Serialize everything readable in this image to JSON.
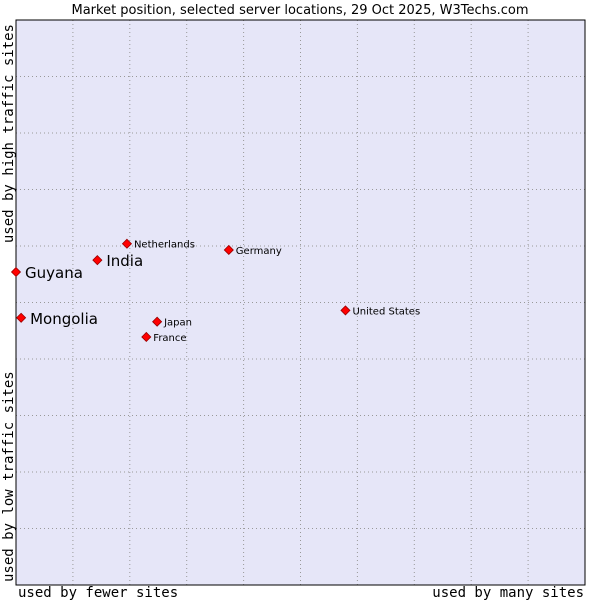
{
  "chart_data": {
    "type": "scatter",
    "title": "Market position, selected server locations, 29 Oct 2025, W3Techs.com",
    "xlabel_low": "used by fewer sites",
    "xlabel_high": "used by many sites",
    "ylabel_low": "used by low traffic sites",
    "ylabel_high": "used by high traffic sites",
    "xlim": [
      0,
      100
    ],
    "ylim": [
      0,
      100
    ],
    "grid": true,
    "points": [
      {
        "label": "Netherlands",
        "x": 19.5,
        "y": 60.4,
        "emphasis": false
      },
      {
        "label": "India",
        "x": 14.3,
        "y": 57.5,
        "emphasis": true
      },
      {
        "label": "Guyana",
        "x": 0.0,
        "y": 55.4,
        "emphasis": true
      },
      {
        "label": "Germany",
        "x": 37.4,
        "y": 59.3,
        "emphasis": false
      },
      {
        "label": "Mongolia",
        "x": 0.9,
        "y": 47.3,
        "emphasis": true
      },
      {
        "label": "United States",
        "x": 57.9,
        "y": 48.6,
        "emphasis": false
      },
      {
        "label": "Japan",
        "x": 24.8,
        "y": 46.6,
        "emphasis": false
      },
      {
        "label": "France",
        "x": 22.9,
        "y": 43.9,
        "emphasis": false
      }
    ]
  },
  "colors": {
    "plot_background": "#e6e6f8",
    "grid": "#999999",
    "marker": "#ff0000",
    "marker_edge": "#990000"
  }
}
